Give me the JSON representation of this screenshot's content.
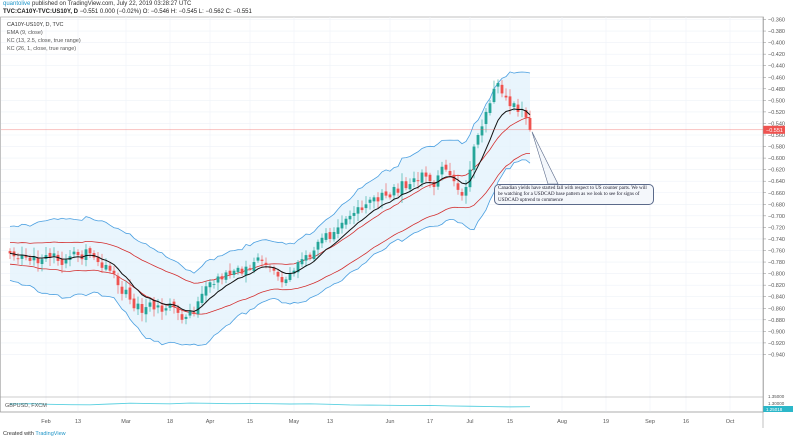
{
  "header": {
    "user": "quantolive",
    "published": "published on TradingView.com, July 22, 2019 03:28:27 UTC",
    "symbol": "TVC:CA10Y-TVC:US10Y, D",
    "quote": "−0.551 0.000 (−0.02%) O: −0.546 H: −0.545 L: −0.562 C: −0.551"
  },
  "legend": [
    "CA10Y-US10Y, D, TVC",
    "EMA (9, close)",
    "KC (13, 2.5, close, true range)",
    "KC (26, 1, close, true range)"
  ],
  "annotation": "Canadian yields have started fall with respect to US counter parts. We will be watching for a USDCAD base pattern as we look to see for signs of USDCAD uptrend to commence",
  "lower_pane": {
    "label": "GBPUSD, FXCM",
    "axis_labels": [
      "1.35000",
      "1.30000"
    ],
    "last_label": "1.25018",
    "values": [
      1.3,
      1.302,
      1.298,
      1.296,
      1.295,
      1.3,
      1.305,
      1.303,
      1.301,
      1.306,
      1.304,
      1.302,
      1.303,
      1.302,
      1.3,
      1.301,
      1.298,
      1.294,
      1.293,
      1.292,
      1.29,
      1.291,
      1.288,
      1.286,
      1.284,
      1.282,
      1.283
    ]
  },
  "footer": {
    "created": "Created with",
    "brand": "TradingView"
  },
  "colors": {
    "up": "#26a69a",
    "down": "#ef5350",
    "ema": "#111111",
    "kc_outer": "#4a9fe0",
    "kc_inner": "#d32f2f",
    "fill": "#e3f2fd",
    "grid": "#eef2f8",
    "last_price": "#ef5350",
    "gbp": "#5ad0e0",
    "gbp_last": "#2bb7c9"
  },
  "chart_data": {
    "type": "candlestick",
    "title": "TVC:CA10Y-TVC:US10Y, D",
    "ylim": [
      -0.96,
      -0.36
    ],
    "y_ticks": [
      "-0.360",
      "-0.380",
      "-0.400",
      "-0.420",
      "-0.440",
      "-0.460",
      "-0.480",
      "-0.500",
      "-0.520",
      "-0.540",
      "-0.560",
      "-0.580",
      "-0.600",
      "-0.620",
      "-0.640",
      "-0.660",
      "-0.680",
      "-0.700",
      "-0.720",
      "-0.740",
      "-0.760",
      "-0.780",
      "-0.800",
      "-0.820",
      "-0.840",
      "-0.860",
      "-0.880",
      "-0.900",
      "-0.920",
      "-0.940"
    ],
    "x_ticks": [
      {
        "label": "Feb",
        "day": 9
      },
      {
        "label": "13",
        "day": 17
      },
      {
        "label": "Mar",
        "day": 29
      },
      {
        "label": "18",
        "day": 40
      },
      {
        "label": "Apr",
        "day": 50
      },
      {
        "label": "15",
        "day": 60
      },
      {
        "label": "May",
        "day": 71
      },
      {
        "label": "13",
        "day": 80
      },
      {
        "label": "Jun",
        "day": 95
      },
      {
        "label": "17",
        "day": 105
      },
      {
        "label": "Jul",
        "day": 115
      },
      {
        "label": "15",
        "day": 125
      },
      {
        "label": "Aug",
        "day": 138
      },
      {
        "label": "19",
        "day": 149
      },
      {
        "label": "Sep",
        "day": 160
      },
      {
        "label": "16",
        "day": 169
      },
      {
        "label": "Oct",
        "day": 180
      }
    ],
    "last_price": "-0.551",
    "start_date": "2019-01-21",
    "closes": [
      -0.765,
      -0.77,
      -0.775,
      -0.768,
      -0.772,
      -0.778,
      -0.77,
      -0.782,
      -0.775,
      -0.768,
      -0.772,
      -0.765,
      -0.778,
      -0.785,
      -0.776,
      -0.77,
      -0.762,
      -0.768,
      -0.775,
      -0.758,
      -0.765,
      -0.772,
      -0.78,
      -0.79,
      -0.785,
      -0.795,
      -0.8,
      -0.82,
      -0.835,
      -0.828,
      -0.845,
      -0.86,
      -0.852,
      -0.868,
      -0.858,
      -0.85,
      -0.862,
      -0.855,
      -0.866,
      -0.86,
      -0.852,
      -0.858,
      -0.868,
      -0.88,
      -0.875,
      -0.865,
      -0.87,
      -0.848,
      -0.835,
      -0.822,
      -0.815,
      -0.818,
      -0.805,
      -0.81,
      -0.798,
      -0.802,
      -0.795,
      -0.79,
      -0.8,
      -0.788,
      -0.792,
      -0.78,
      -0.772,
      -0.778,
      -0.785,
      -0.79,
      -0.795,
      -0.805,
      -0.815,
      -0.81,
      -0.8,
      -0.795,
      -0.78,
      -0.775,
      -0.768,
      -0.772,
      -0.76,
      -0.745,
      -0.738,
      -0.73,
      -0.74,
      -0.728,
      -0.72,
      -0.712,
      -0.705,
      -0.7,
      -0.695,
      -0.685,
      -0.69,
      -0.68,
      -0.672,
      -0.668,
      -0.675,
      -0.66,
      -0.665,
      -0.668,
      -0.65,
      -0.66,
      -0.64,
      -0.652,
      -0.645,
      -0.635,
      -0.64,
      -0.625,
      -0.632,
      -0.64,
      -0.65,
      -0.63,
      -0.615,
      -0.62,
      -0.63,
      -0.64,
      -0.655,
      -0.665,
      -0.65,
      -0.62,
      -0.58,
      -0.56,
      -0.545,
      -0.52,
      -0.505,
      -0.48,
      -0.47,
      -0.488,
      -0.495,
      -0.51,
      -0.505,
      -0.52,
      -0.515,
      -0.53,
      -0.551
    ],
    "series": [
      {
        "name": "EMA (9, close)"
      },
      {
        "name": "KC (13, 2.5, close, true range)"
      },
      {
        "name": "KC (26, 1, close, true range)"
      }
    ]
  }
}
